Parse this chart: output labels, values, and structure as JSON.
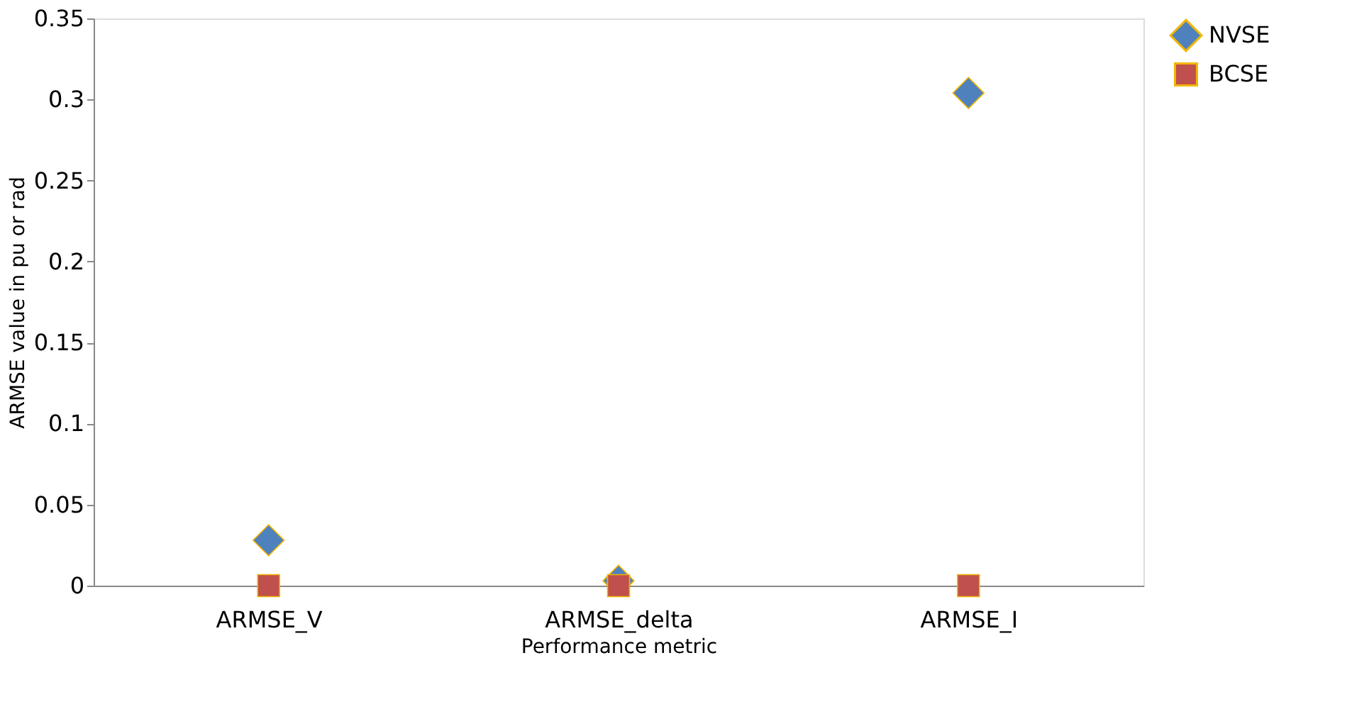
{
  "chart_data": {
    "type": "scatter",
    "xlabel": "Performance metric",
    "ylabel": "ARMSE value in pu or rad",
    "categories": [
      "ARMSE_V",
      "ARMSE_delta",
      "ARMSE_I"
    ],
    "series": [
      {
        "name": "NVSE",
        "color": "#4f81bd",
        "marker": "diamond",
        "values": [
          0.028,
          0.003,
          0.304
        ]
      },
      {
        "name": "BCSE",
        "color": "#c0504d",
        "marker": "square",
        "values": [
          0.0,
          0.0,
          0.0
        ]
      }
    ],
    "ylim": [
      0,
      0.35
    ],
    "yticks": [
      0,
      0.05,
      0.1,
      0.15,
      0.2,
      0.25,
      0.3,
      0.35
    ],
    "grid": false,
    "legend": "right"
  }
}
